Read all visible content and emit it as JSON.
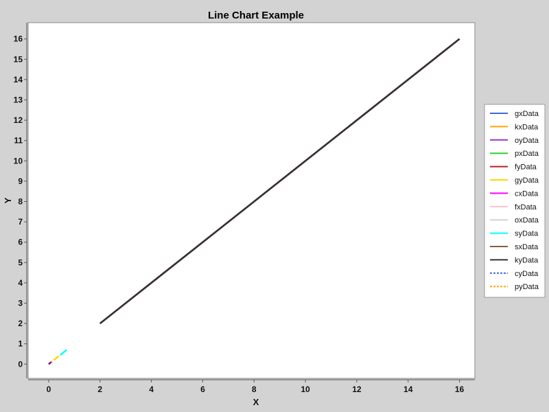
{
  "chart_data": {
    "type": "line",
    "title": "Line Chart Example",
    "xlabel": "X",
    "ylabel": "Y",
    "xlim": [
      -0.8,
      16.6
    ],
    "ylim": [
      -0.7,
      16.8
    ],
    "x_ticks": [
      0,
      2,
      4,
      6,
      8,
      10,
      12,
      14,
      16
    ],
    "y_ticks": [
      0,
      1,
      2,
      3,
      4,
      5,
      6,
      7,
      8,
      9,
      10,
      11,
      12,
      13,
      14,
      15,
      16
    ],
    "grid": false,
    "legend_position": "right",
    "series": [
      {
        "name": "gxData",
        "color": "#4169e1",
        "dashed": false,
        "x": [
          2,
          16
        ],
        "y": [
          2,
          16
        ]
      },
      {
        "name": "kxData",
        "color": "#ffa500",
        "dashed": false,
        "x": [
          2,
          16
        ],
        "y": [
          2,
          16
        ]
      },
      {
        "name": "oyData",
        "color": "#9932cc",
        "dashed": false,
        "x": [
          2,
          16
        ],
        "y": [
          2,
          16
        ]
      },
      {
        "name": "pxData",
        "color": "#32cd32",
        "dashed": false,
        "x": [
          2,
          16
        ],
        "y": [
          2,
          16
        ]
      },
      {
        "name": "fyData",
        "color": "#b22222",
        "dashed": false,
        "x": [
          2,
          16
        ],
        "y": [
          2,
          16
        ]
      },
      {
        "name": "gyData",
        "color": "#ffd700",
        "dashed": false,
        "x": [
          0.2,
          0.4
        ],
        "y": [
          0.2,
          0.4
        ]
      },
      {
        "name": "cxData",
        "color": "#ff00ff",
        "dashed": false,
        "x": [
          2,
          16
        ],
        "y": [
          2,
          16
        ]
      },
      {
        "name": "fxData",
        "color": "#ffc0cb",
        "dashed": false,
        "x": [
          2,
          16
        ],
        "y": [
          2,
          16
        ]
      },
      {
        "name": "oxData",
        "color": "#d3d3d3",
        "dashed": false,
        "x": [
          2,
          16
        ],
        "y": [
          2,
          16
        ]
      },
      {
        "name": "syData",
        "color": "#00ffff",
        "dashed": false,
        "x": [
          0.45,
          0.7
        ],
        "y": [
          0.45,
          0.7
        ]
      },
      {
        "name": "sxData",
        "color": "#8b5a3c",
        "dashed": false,
        "x": [
          2,
          16
        ],
        "y": [
          2,
          16
        ]
      },
      {
        "name": "kyData",
        "color": "#333333",
        "dashed": false,
        "x": [
          2,
          16
        ],
        "y": [
          2,
          16
        ]
      },
      {
        "name": "cyData",
        "color": "#4169e1",
        "dashed": true,
        "x": [
          0,
          0.05
        ],
        "y": [
          0,
          0.05
        ]
      },
      {
        "name": "pyData",
        "color": "#ffa500",
        "dashed": true,
        "x": [
          0.05,
          0.15
        ],
        "y": [
          0.05,
          0.15
        ]
      }
    ],
    "overlays": [
      {
        "color": "#8b008b",
        "x": [
          0,
          0.1
        ],
        "y": [
          0,
          0.1
        ]
      }
    ]
  }
}
